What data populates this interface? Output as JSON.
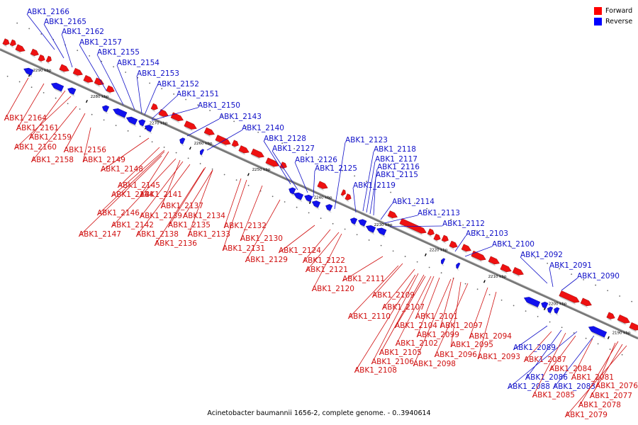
{
  "caption": "Acinetobacter baumannii 1656-2, complete genome. - 0..3940614",
  "legend": [
    {
      "label": "Forward",
      "color": "#ff0000"
    },
    {
      "label": "Reverse",
      "color": "#0000ff"
    }
  ],
  "colors": {
    "forward": "#ee1111",
    "reverse": "#1111ee",
    "axis": "#777777"
  },
  "ticks": [
    "2290 kbp",
    "2280 kbp",
    "2270 kbp",
    "2260 kbp",
    "2250 kbp",
    "2240 kbp",
    "2230 kbp",
    "2220 kbp",
    "2210 kbp",
    "2200 kbp",
    "2190 kbp"
  ],
  "reverse_labels": [
    "ABK1_2166",
    "ABK1_2165",
    "ABK1_2162",
    "ABK1_2157",
    "ABK1_2155",
    "ABK1_2154",
    "ABK1_2153",
    "ABK1_2152",
    "ABK1_2151",
    "ABK1_2150",
    "ABK1_2143",
    "ABK1_2140",
    "ABK1_2128",
    "ABK1_2127",
    "ABK1_2126",
    "ABK1_2125",
    "ABK1_2123",
    "ABK1_2118",
    "ABK1_2117",
    "ABK1_2116",
    "ABK1_2115",
    "ABK1_2119",
    "ABK1_2114",
    "ABK1_2113",
    "ABK1_2112",
    "ABK1_2103",
    "ABK1_2100",
    "ABK1_2092",
    "ABK1_2091",
    "ABK1_2090",
    "ABK1_2089",
    "ABK1_2086",
    "ABK1_2088",
    "ABK1_2083"
  ],
  "forward_labels": [
    "ABK1_2164",
    "ABK1_2161",
    "ABK1_2159",
    "ABK1_2160",
    "ABK1_2156",
    "ABK1_2158",
    "ABK1_2149",
    "ABK1_2148",
    "ABK1_2145",
    "ABK1_2144",
    "ABK1_2141",
    "ABK1_2146",
    "ABK1_2137",
    "ABK1_2139",
    "ABK1_2134",
    "ABK1_2142",
    "ABK1_2135",
    "ABK1_2147",
    "ABK1_2138",
    "ABK1_2133",
    "ABK1_2132",
    "ABK1_2136",
    "ABK1_2130",
    "ABK1_2131",
    "ABK1_2124",
    "ABK1_2129",
    "ABK1_2122",
    "ABK1_2121",
    "ABK1_2120",
    "ABK1_2111",
    "ABK1_2109",
    "ABK1_2107",
    "ABK1_2110",
    "ABK1_2101",
    "ABK1_2104",
    "ABK1_2097",
    "ABK1_2099",
    "ABK1_2102",
    "ABK1_2095",
    "ABK1_2094",
    "ABK1_2105",
    "ABK1_2096",
    "ABK1_2093",
    "ABK1_2106",
    "ABK1_2098",
    "ABK1_2108",
    "ABK1_2087",
    "ABK1_2084",
    "ABK1_2081",
    "ABK1_2076",
    "ABK1_2085",
    "ABK1_2077",
    "ABK1_2078",
    "ABK1_2079"
  ]
}
